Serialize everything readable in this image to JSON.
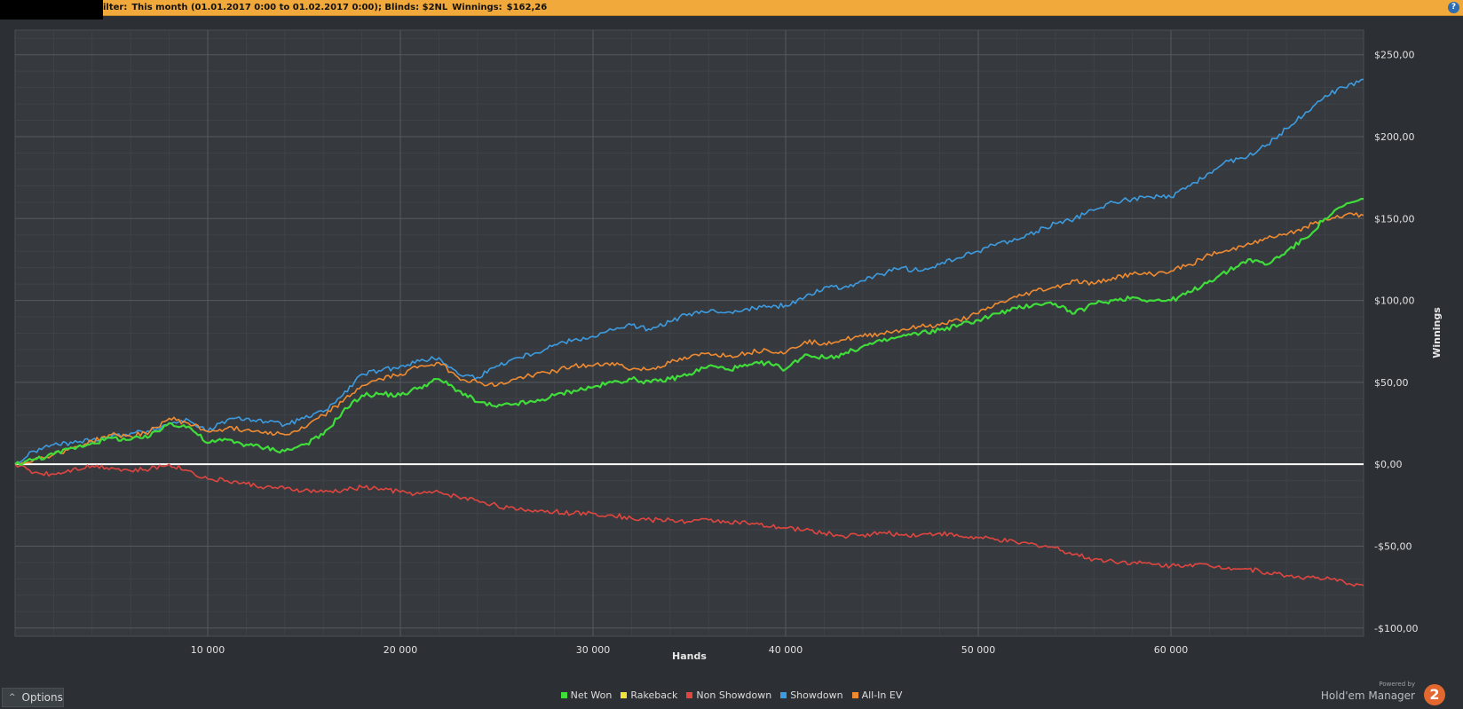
{
  "filter_bar": {
    "label": "ilter:",
    "period": "This month (01.01.2017 0:00 to 01.02.2017 0:00); Blinds: $2NL",
    "winnings_label": "Winnings:",
    "winnings_value": "$162,26",
    "help_glyph": "?"
  },
  "options_button": {
    "label": "Options",
    "caret": "^"
  },
  "branding": {
    "powered_by": "Powered by",
    "product": "Hold'em Manager",
    "logo_glyph": "2"
  },
  "colors": {
    "filter_bar": "#f0a93a",
    "background": "#2c3034",
    "plot_background": "#363a3f",
    "net_won": "#3fdc3a",
    "rakeback": "#f2e33a",
    "non_showdown": "#e0453f",
    "showdown": "#3d9be0",
    "all_in_ev": "#f08a30"
  },
  "chart_data": {
    "type": "line",
    "title": "",
    "xlabel": "Hands",
    "ylabel": "Winnings",
    "xlim": [
      0,
      70000
    ],
    "ylim": [
      -105,
      265
    ],
    "x_ticks": [
      10000,
      20000,
      30000,
      40000,
      50000,
      60000
    ],
    "x_tick_labels": [
      "10 000",
      "20 000",
      "30 000",
      "40 000",
      "50 000",
      "60 000"
    ],
    "y_ticks": [
      -100,
      -50,
      0,
      50,
      100,
      150,
      200,
      250
    ],
    "y_tick_labels": [
      "-$100,00",
      "-$50,00",
      "$0,00",
      "$50,00",
      "$100,00",
      "$150,00",
      "$200,00",
      "$250,00"
    ],
    "grid": true,
    "zero_line": true,
    "legend_position": "bottom-center",
    "series": [
      {
        "name": "Net Won",
        "color_key": "net_won",
        "x": [
          0,
          1000,
          2000,
          3000,
          4000,
          5000,
          6000,
          7000,
          8000,
          9000,
          10000,
          11000,
          12000,
          13000,
          14000,
          15000,
          16000,
          17000,
          18000,
          19000,
          20000,
          21000,
          22000,
          23000,
          24000,
          25000,
          26000,
          27000,
          28000,
          29000,
          30000,
          31000,
          32000,
          33000,
          34000,
          35000,
          36000,
          37000,
          38000,
          39000,
          40000,
          41000,
          42000,
          43000,
          44000,
          45000,
          46000,
          47000,
          48000,
          49000,
          50000,
          51000,
          52000,
          53000,
          54000,
          55000,
          56000,
          57000,
          58000,
          59000,
          60000,
          61000,
          62000,
          63000,
          64000,
          65000,
          66000,
          67000,
          68000,
          69000,
          70000
        ],
        "y": [
          0,
          3,
          6,
          10,
          13,
          16,
          15,
          17,
          25,
          23,
          13,
          15,
          12,
          10,
          8,
          12,
          18,
          32,
          42,
          43,
          42,
          47,
          52,
          45,
          38,
          35,
          37,
          38,
          42,
          45,
          47,
          50,
          52,
          50,
          52,
          55,
          60,
          58,
          60,
          62,
          58,
          67,
          65,
          67,
          72,
          75,
          78,
          80,
          82,
          85,
          88,
          92,
          95,
          98,
          98,
          92,
          98,
          100,
          102,
          100,
          100,
          105,
          112,
          118,
          125,
          122,
          130,
          138,
          150,
          158,
          162
        ]
      },
      {
        "name": "Rakeback",
        "color_key": "rakeback",
        "x": [],
        "y": []
      },
      {
        "name": "Non Showdown",
        "color_key": "non_showdown",
        "x": [
          0,
          1000,
          2000,
          3000,
          4000,
          5000,
          6000,
          7000,
          8000,
          9000,
          10000,
          11000,
          12000,
          13000,
          14000,
          15000,
          16000,
          17000,
          18000,
          19000,
          20000,
          21000,
          22000,
          23000,
          24000,
          25000,
          26000,
          27000,
          28000,
          29000,
          30000,
          31000,
          32000,
          33000,
          34000,
          35000,
          36000,
          37000,
          38000,
          39000,
          40000,
          41000,
          42000,
          43000,
          44000,
          45000,
          46000,
          47000,
          48000,
          49000,
          50000,
          51000,
          52000,
          53000,
          54000,
          55000,
          56000,
          57000,
          58000,
          59000,
          60000,
          61000,
          62000,
          63000,
          64000,
          65000,
          66000,
          67000,
          68000,
          69000,
          70000
        ],
        "y": [
          0,
          -5,
          -6,
          -3,
          -1,
          -2,
          -4,
          -3,
          0,
          -4,
          -9,
          -10,
          -12,
          -14,
          -15,
          -16,
          -17,
          -16,
          -14,
          -15,
          -17,
          -18,
          -17,
          -20,
          -22,
          -25,
          -28,
          -28,
          -29,
          -30,
          -30,
          -31,
          -33,
          -34,
          -34,
          -35,
          -34,
          -35,
          -36,
          -38,
          -39,
          -40,
          -42,
          -44,
          -43,
          -42,
          -43,
          -43,
          -42,
          -44,
          -45,
          -46,
          -48,
          -49,
          -51,
          -55,
          -58,
          -59,
          -60,
          -61,
          -62,
          -61,
          -62,
          -63,
          -64,
          -66,
          -68,
          -69,
          -70,
          -72,
          -74
        ]
      },
      {
        "name": "Showdown",
        "color_key": "showdown",
        "x": [
          0,
          1000,
          2000,
          3000,
          4000,
          5000,
          6000,
          7000,
          8000,
          9000,
          10000,
          11000,
          12000,
          13000,
          14000,
          15000,
          16000,
          17000,
          18000,
          19000,
          20000,
          21000,
          22000,
          23000,
          24000,
          25000,
          26000,
          27000,
          28000,
          29000,
          30000,
          31000,
          32000,
          33000,
          34000,
          35000,
          36000,
          37000,
          38000,
          39000,
          40000,
          41000,
          42000,
          43000,
          44000,
          45000,
          46000,
          47000,
          48000,
          49000,
          50000,
          51000,
          52000,
          53000,
          54000,
          55000,
          56000,
          57000,
          58000,
          59000,
          60000,
          61000,
          62000,
          63000,
          64000,
          65000,
          66000,
          67000,
          68000,
          69000,
          70000
        ],
        "y": [
          0,
          8,
          12,
          13,
          15,
          17,
          19,
          20,
          25,
          27,
          20,
          27,
          28,
          26,
          24,
          28,
          32,
          42,
          55,
          57,
          60,
          63,
          65,
          55,
          53,
          60,
          65,
          68,
          73,
          76,
          78,
          82,
          85,
          82,
          87,
          92,
          93,
          93,
          95,
          96,
          97,
          102,
          108,
          108,
          112,
          116,
          120,
          118,
          122,
          126,
          130,
          135,
          137,
          142,
          147,
          150,
          155,
          160,
          162,
          163,
          163,
          170,
          178,
          185,
          188,
          195,
          205,
          215,
          225,
          230,
          235
        ]
      },
      {
        "name": "All-In EV",
        "color_key": "all_in_ev",
        "x": [
          0,
          1000,
          2000,
          3000,
          4000,
          5000,
          6000,
          7000,
          8000,
          9000,
          10000,
          11000,
          12000,
          13000,
          14000,
          15000,
          16000,
          17000,
          18000,
          19000,
          20000,
          21000,
          22000,
          23000,
          24000,
          25000,
          26000,
          27000,
          28000,
          29000,
          30000,
          31000,
          32000,
          33000,
          34000,
          35000,
          36000,
          37000,
          38000,
          39000,
          40000,
          41000,
          42000,
          43000,
          44000,
          45000,
          46000,
          47000,
          48000,
          49000,
          50000,
          51000,
          52000,
          53000,
          54000,
          55000,
          56000,
          57000,
          58000,
          59000,
          60000,
          61000,
          62000,
          63000,
          64000,
          65000,
          66000,
          67000,
          68000,
          69000,
          70000
        ],
        "y": [
          0,
          3,
          6,
          10,
          14,
          18,
          17,
          20,
          28,
          25,
          20,
          22,
          21,
          20,
          18,
          22,
          30,
          38,
          48,
          52,
          55,
          60,
          62,
          53,
          50,
          48,
          52,
          55,
          57,
          60,
          60,
          62,
          58,
          58,
          62,
          65,
          68,
          66,
          68,
          70,
          68,
          75,
          74,
          76,
          78,
          80,
          82,
          84,
          85,
          88,
          92,
          98,
          102,
          106,
          108,
          112,
          110,
          114,
          116,
          116,
          118,
          122,
          128,
          130,
          135,
          138,
          140,
          145,
          150,
          152,
          152
        ]
      }
    ]
  }
}
